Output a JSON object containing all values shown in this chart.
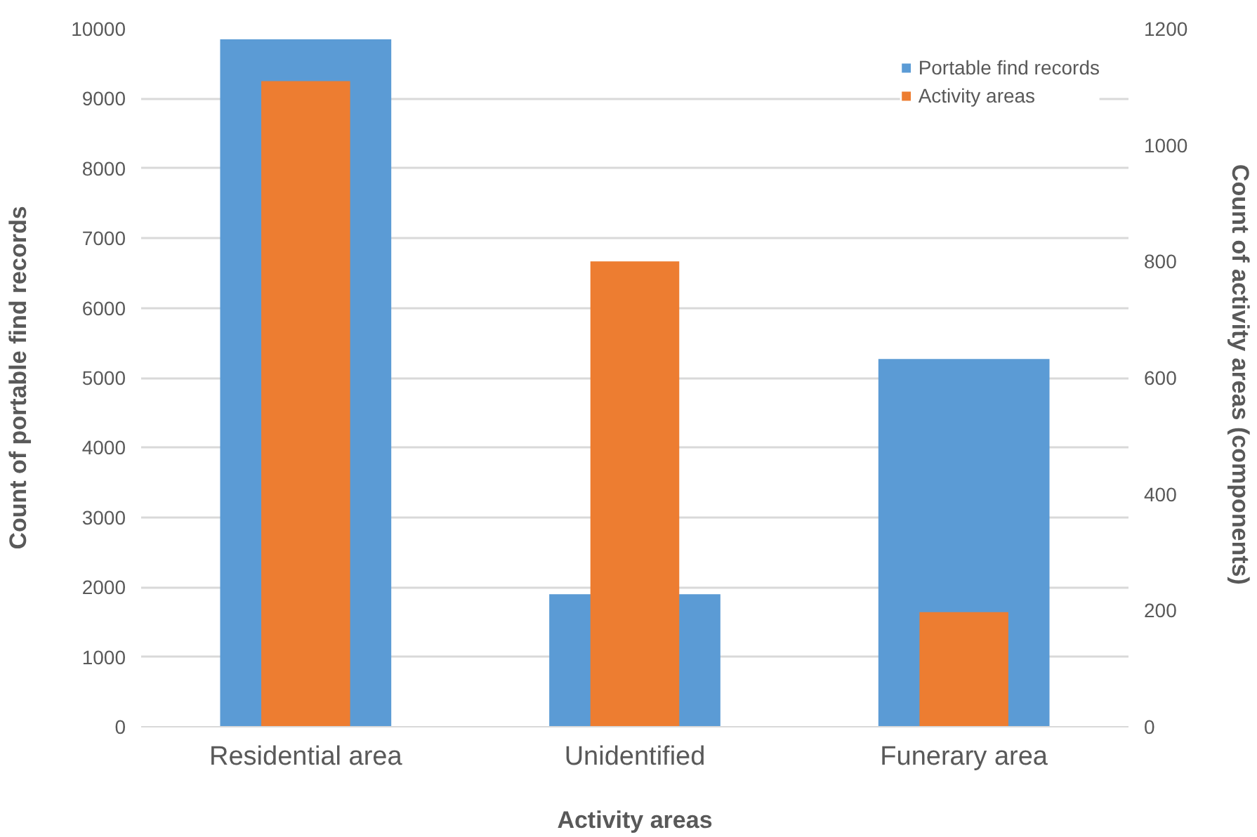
{
  "chart_data": {
    "type": "bar",
    "xlabel": "Activity areas",
    "ylabel": "Count of portable find records",
    "y2label": "Count of activity areas  (components)",
    "categories": [
      "Residential area",
      "Unidentified",
      "Funerary area"
    ],
    "series": [
      {
        "name": "Portable find records",
        "color": "#5b9bd5",
        "values": [
          9850,
          1900,
          5270
        ]
      },
      {
        "name": "Activity areas",
        "color": "#ed7d31",
        "values": [
          1110,
          800,
          197
        ],
        "axis": "y2"
      }
    ],
    "ylim": [
      0,
      10000
    ],
    "yticks": [
      0,
      1000,
      2000,
      3000,
      4000,
      5000,
      6000,
      7000,
      8000,
      9000,
      10000
    ],
    "y2lim": [
      0,
      1200
    ],
    "y2ticks": [
      0,
      200,
      400,
      600,
      800,
      1000,
      1200
    ],
    "grid": "y",
    "legend": "top right"
  }
}
